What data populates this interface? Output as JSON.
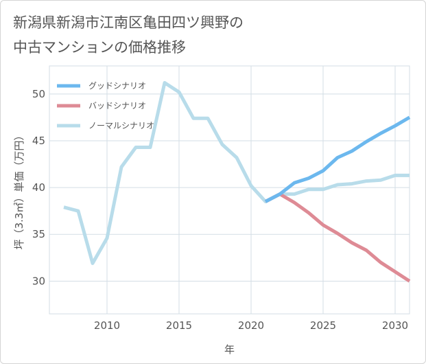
{
  "title_lines": [
    "新潟県新潟市江南区亀田四ツ興野の",
    "中古マンションの価格推移"
  ],
  "colors": {
    "good": "#6cb8ee",
    "bad": "#de8b95",
    "normal": "#b8dcea",
    "grid": "#d3dde5",
    "text": "#555555"
  },
  "chart_data": {
    "type": "line",
    "title": "新潟県新潟市江南区亀田四ツ興野の中古マンションの価格推移",
    "xlabel": "年",
    "ylabel": "坪（3.3㎡）単価（万円）",
    "xlim": [
      2006,
      2031
    ],
    "ylim": [
      26.5,
      53
    ],
    "x_ticks": [
      2010,
      2015,
      2020,
      2025,
      2030
    ],
    "y_ticks": [
      30,
      35,
      40,
      45,
      50
    ],
    "grid": true,
    "legend_position": "top-left",
    "series": [
      {
        "name": "グッドシナリオ",
        "color_key": "good",
        "x": [
          2021,
          2022,
          2023,
          2024,
          2025,
          2026,
          2027,
          2028,
          2029,
          2030,
          2031
        ],
        "values": [
          38.5,
          39.3,
          40.5,
          41.0,
          41.8,
          43.2,
          43.9,
          44.9,
          45.8,
          46.6,
          47.5
        ]
      },
      {
        "name": "バッドシナリオ",
        "color_key": "bad",
        "x": [
          2021,
          2022,
          2023,
          2024,
          2025,
          2026,
          2027,
          2028,
          2029,
          2030,
          2031
        ],
        "values": [
          38.5,
          39.3,
          38.4,
          37.3,
          36.0,
          35.1,
          34.1,
          33.3,
          32.0,
          31.0,
          30.0
        ]
      },
      {
        "name": "ノーマルシナリオ",
        "color_key": "normal",
        "x": [
          2007,
          2008,
          2009,
          2010,
          2011,
          2012,
          2013,
          2014,
          2015,
          2016,
          2017,
          2018,
          2019,
          2020,
          2021,
          2022,
          2023,
          2024,
          2025,
          2026,
          2027,
          2028,
          2029,
          2030,
          2031
        ],
        "values": [
          37.9,
          37.5,
          31.9,
          34.6,
          42.2,
          44.3,
          44.3,
          51.2,
          50.2,
          47.4,
          47.4,
          44.6,
          43.2,
          40.2,
          38.5,
          39.3,
          39.3,
          39.8,
          39.8,
          40.3,
          40.4,
          40.7,
          40.8,
          41.3,
          41.3
        ]
      }
    ]
  }
}
